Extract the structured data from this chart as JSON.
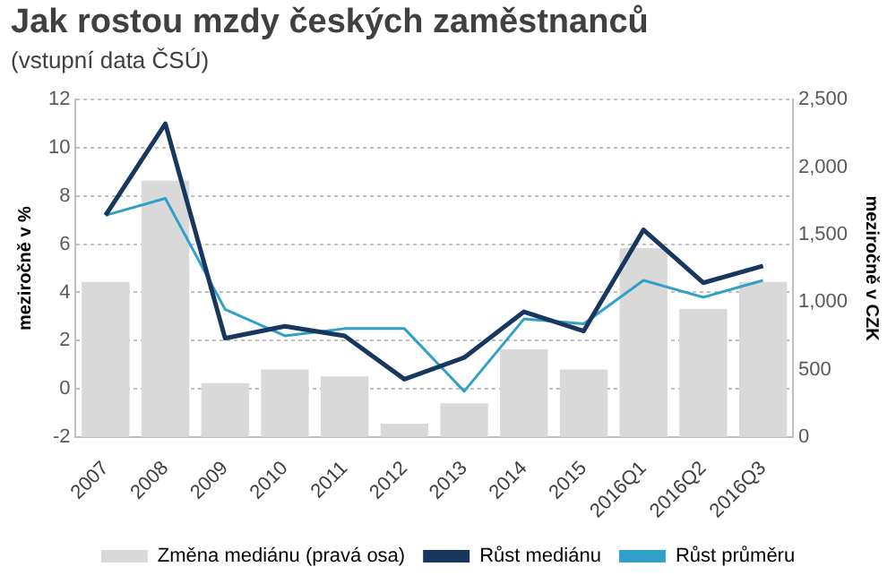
{
  "chart_data": {
    "type": "bar",
    "title": "Jak rostou mzdy českých zaměstnanců",
    "subtitle": "(vstupní data ČSÚ)",
    "categories": [
      "2007",
      "2008",
      "2009",
      "2010",
      "2011",
      "2012",
      "2013",
      "2014",
      "2015",
      "2016Q1",
      "2016Q2",
      "2016Q3"
    ],
    "series": [
      {
        "name": "Změna mediánu (pravá osa)",
        "axis": "y2",
        "color": "#d9d9d9",
        "values": [
          1150,
          1900,
          400,
          500,
          450,
          100,
          250,
          650,
          500,
          1400,
          950,
          1150
        ]
      },
      {
        "name": "Růst mediánu",
        "type": "line",
        "color": "#17375e",
        "values": [
          7.2,
          11.0,
          2.1,
          2.6,
          2.2,
          0.4,
          1.3,
          3.2,
          2.4,
          6.6,
          4.4,
          5.1
        ]
      },
      {
        "name": "Růst průměru",
        "type": "line",
        "color": "#31a0c8",
        "values": [
          7.2,
          7.9,
          3.3,
          2.2,
          2.5,
          2.5,
          -0.1,
          2.9,
          2.7,
          4.5,
          3.8,
          4.5
        ]
      }
    ],
    "ylabel": "meziročně v %",
    "y2label": "meziročně v CZK",
    "ylim": [
      -2,
      12
    ],
    "yticks": [
      -2,
      0,
      2,
      4,
      6,
      8,
      10,
      12
    ],
    "y2lim": [
      0,
      2500
    ],
    "y2ticks": [
      {
        "value": 0,
        "label": "0"
      },
      {
        "value": 500,
        "label": "500"
      },
      {
        "value": 1000,
        "label": "1,000"
      },
      {
        "value": 1500,
        "label": "1,500"
      },
      {
        "value": 2000,
        "label": "2,000"
      },
      {
        "value": 2500,
        "label": "2,500"
      }
    ],
    "grid": "y",
    "legend": "bottom",
    "marker": "none",
    "line_style": "solid"
  }
}
